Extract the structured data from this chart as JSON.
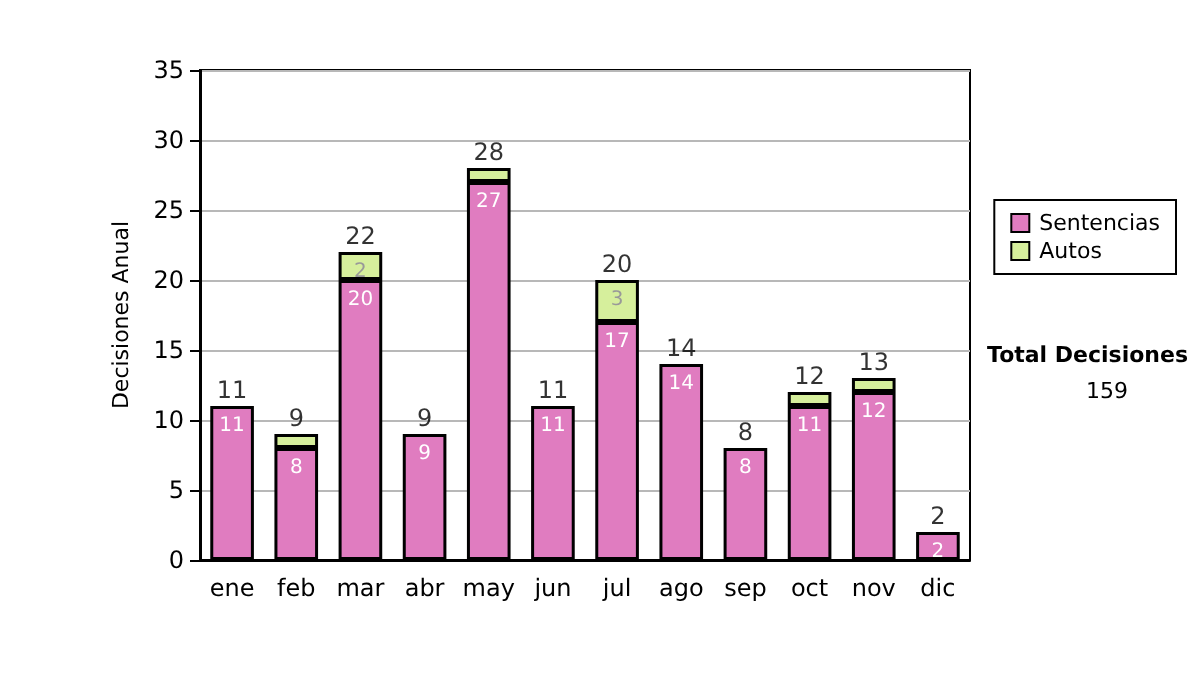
{
  "chart_data": {
    "type": "bar",
    "stacked": true,
    "ylabel": "Decisiones Anual",
    "categories": [
      "ene",
      "feb",
      "mar",
      "abr",
      "may",
      "jun",
      "jul",
      "ago",
      "sep",
      "oct",
      "nov",
      "dic"
    ],
    "series": [
      {
        "name": "Sentencias",
        "color": "#e07cc0",
        "values": [
          11,
          8,
          20,
          9,
          27,
          11,
          17,
          14,
          8,
          11,
          12,
          2
        ],
        "value_labels": [
          "11",
          "8",
          "20",
          "9",
          "27",
          "11",
          "17",
          "14",
          "8",
          "11",
          "12",
          "2"
        ]
      },
      {
        "name": "Autos",
        "color": "#d6ef9c",
        "values": [
          0,
          1,
          2,
          0,
          1,
          0,
          3,
          0,
          0,
          1,
          1,
          0
        ],
        "value_labels": [
          null,
          null,
          "2",
          null,
          null,
          null,
          "3",
          null,
          null,
          null,
          null,
          null
        ]
      }
    ],
    "totals": [
      "11",
      "9",
      "22",
      "9",
      "28",
      "11",
      "20",
      "14",
      "8",
      "12",
      "13",
      "2"
    ],
    "ylim": [
      0,
      35
    ],
    "yticks": [
      0,
      5,
      10,
      15,
      20,
      25,
      30,
      35
    ],
    "grid": "y",
    "legend": "right",
    "annotations": [
      "Total Decisiones",
      "159"
    ]
  }
}
